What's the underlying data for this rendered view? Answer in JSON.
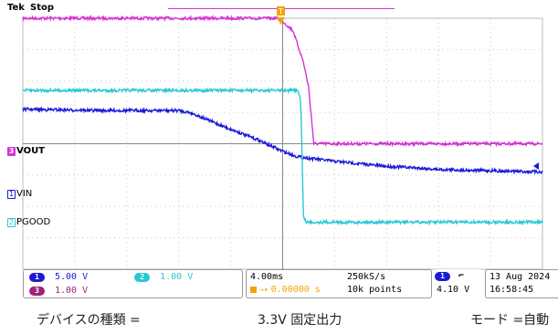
{
  "header": {
    "brand": "Tek",
    "run_state": "Stop",
    "trigger_marker": "T"
  },
  "channels": [
    {
      "id": "3",
      "label": "VOUT",
      "color": "#d633d6",
      "scale": "1.00 V"
    },
    {
      "id": "1",
      "label": "VIN",
      "color": "#1a1ad6",
      "scale": "5.00 V"
    },
    {
      "id": "2",
      "label": "PGOOD",
      "color": "#2ac8d6",
      "scale": "1.00 V"
    }
  ],
  "status_bar": {
    "ch1_scale": "5.00 V",
    "ch2_scale": "1.00 V",
    "ch3_scale": "1.00 V",
    "timebase": "4.00ms",
    "trigger_position": "0.00000 s",
    "sample_rate": "250kS/s",
    "record_length": "10k points",
    "trigger_source": "1",
    "trigger_slope": "falling-edge-icon",
    "trigger_level": "4.10 V",
    "date": "13 Aug 2024",
    "time": "16:58:45"
  },
  "caption": {
    "device_type": "デバイスの種類 =",
    "device_value": "3.3V 固定出力",
    "mode": "モード =自動"
  },
  "chart_data": {
    "type": "line",
    "x_unit": "ms",
    "x_per_div": 4.0,
    "x_divisions": 10,
    "x_range": [
      -20,
      20
    ],
    "grid": true,
    "series": [
      {
        "name": "VOUT",
        "color": "#d633d6",
        "ground_div": 0.0,
        "volts_per_div": 1.0,
        "x": [
          -20,
          -0.4,
          0.0,
          0.8,
          1.6,
          2.0,
          2.4,
          2.8,
          3.2,
          4.0,
          20
        ],
        "y": [
          4.0,
          4.0,
          3.9,
          3.6,
          2.6,
          1.8,
          0.0,
          0.0,
          0.0,
          0.0,
          0.0
        ]
      },
      {
        "name": "VIN",
        "color": "#1a1ad6",
        "ground_div": -1.5,
        "volts_per_div": 5.0,
        "x": [
          -20,
          -14,
          -10,
          -8,
          -7,
          -6,
          -4,
          -2,
          0,
          1,
          2,
          4,
          6,
          8,
          10,
          12,
          14,
          16,
          18,
          20
        ],
        "y": [
          13.0,
          12.8,
          12.8,
          12.8,
          12.4,
          11.5,
          9.8,
          8.2,
          6.3,
          5.5,
          5.2,
          4.7,
          4.3,
          3.9,
          3.7,
          3.4,
          3.3,
          3.2,
          3.1,
          3.0
        ]
      },
      {
        "name": "PGOOD",
        "color": "#2ac8d6",
        "ground_div": -2.5,
        "volts_per_div": 1.0,
        "x": [
          -20,
          1.2,
          1.4,
          1.6,
          1.8,
          20
        ],
        "y": [
          4.2,
          4.2,
          3.8,
          0.2,
          0.0,
          0.0
        ]
      }
    ]
  }
}
